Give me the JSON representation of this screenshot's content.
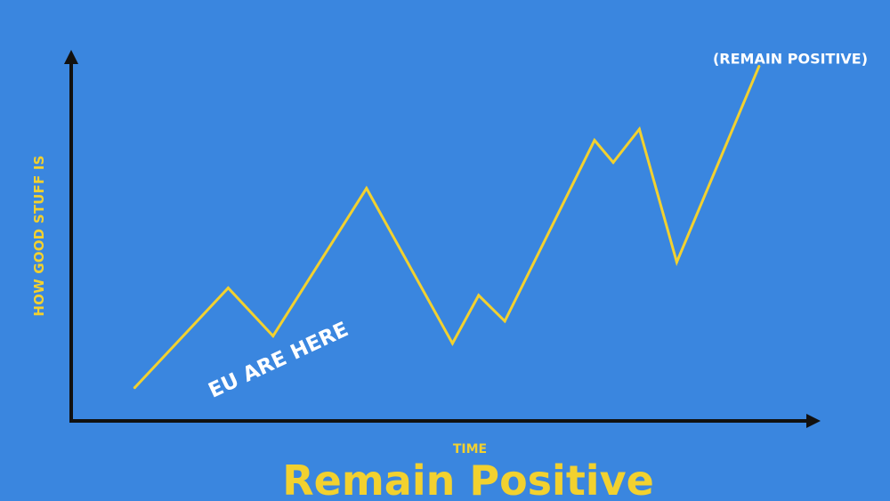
{
  "colors": {
    "background": "#3a86df",
    "line": "#f2d12f",
    "axis": "#111111",
    "annotation": "#ffffff"
  },
  "chart_data": {
    "type": "line",
    "title": "Remain Positive",
    "xlabel": "TIME",
    "ylabel": "HOW GOOD STUFF IS",
    "grid": false,
    "xlim": [
      0,
      100
    ],
    "ylim": [
      0,
      100
    ],
    "series": [
      {
        "x": [
          8.5,
          21,
          27,
          39.5,
          51,
          54.5,
          58,
          70,
          72.5,
          76,
          81,
          92
        ],
        "values": [
          9,
          36,
          23,
          63,
          21,
          34,
          27,
          76,
          70,
          79,
          43,
          96
        ]
      }
    ],
    "annotations": [
      {
        "id": "here",
        "text": "EU ARE HERE"
      },
      {
        "id": "peak",
        "text": "(REMAIN POSITIVE)"
      }
    ]
  }
}
